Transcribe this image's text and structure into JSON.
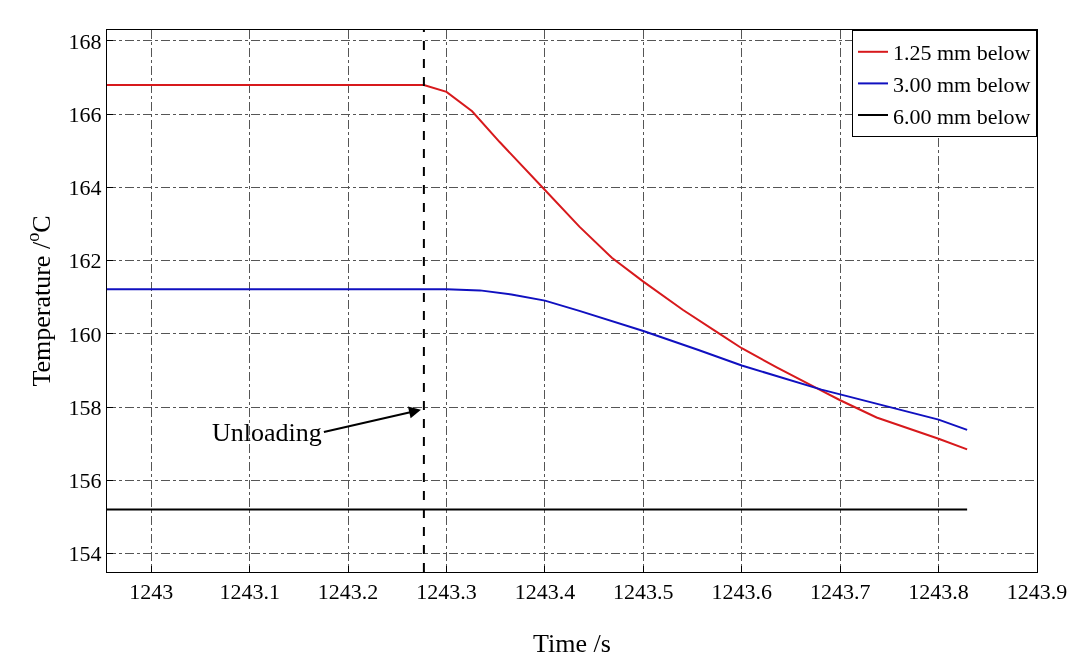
{
  "chart_data": {
    "type": "line",
    "xlabel": "Time /s",
    "ylabel": "Temperature /$^{o}$C",
    "xlim": [
      1242.955,
      1243.9
    ],
    "xticks": [
      1243,
      1243.1,
      1243.2,
      1243.3,
      1243.4,
      1243.5,
      1243.6,
      1243.7,
      1243.8,
      1243.9
    ],
    "ylim": [
      153.5,
      168.3
    ],
    "yticks": [
      154,
      156,
      158,
      160,
      162,
      164,
      166,
      168
    ],
    "grid": true,
    "legend": "top right",
    "marker": "none",
    "line_style": "solid",
    "series": [
      {
        "name": "1.25 mm below",
        "color": "#d7191c",
        "x": [
          1242.955,
          1243.277,
          1243.3,
          1243.326,
          1243.354,
          1243.4,
          1243.435,
          1243.468,
          1243.5,
          1243.54,
          1243.576,
          1243.6,
          1243.636,
          1243.681,
          1243.7,
          1243.737,
          1243.8,
          1243.829
        ],
        "values": [
          166.8,
          166.8,
          166.61,
          166.08,
          165.24,
          163.93,
          162.93,
          162.08,
          161.43,
          160.66,
          160.03,
          159.61,
          159.08,
          158.45,
          158.19,
          157.72,
          157.14,
          156.85
        ]
      },
      {
        "name": "3.00 mm below",
        "color": "#1010c0",
        "x": [
          1242.955,
          1243.3,
          1243.334,
          1243.366,
          1243.4,
          1243.435,
          1243.5,
          1243.556,
          1243.6,
          1243.681,
          1243.7,
          1243.8,
          1243.829
        ],
        "values": [
          161.22,
          161.22,
          161.19,
          161.08,
          160.91,
          160.63,
          160.08,
          159.56,
          159.14,
          158.48,
          158.35,
          157.66,
          157.38
        ]
      },
      {
        "name": "6.00 mm below",
        "color": "#000000",
        "x": [
          1242.955,
          1243.829
        ],
        "values": [
          155.21,
          155.21
        ]
      }
    ],
    "ref_lines": [
      {
        "axis": "x",
        "value": 1243.277,
        "color": "#000000",
        "line_style": "dashed"
      }
    ],
    "annotations": [
      {
        "text": "Unloading",
        "x": 1243.277,
        "y": 157.95
      }
    ]
  }
}
